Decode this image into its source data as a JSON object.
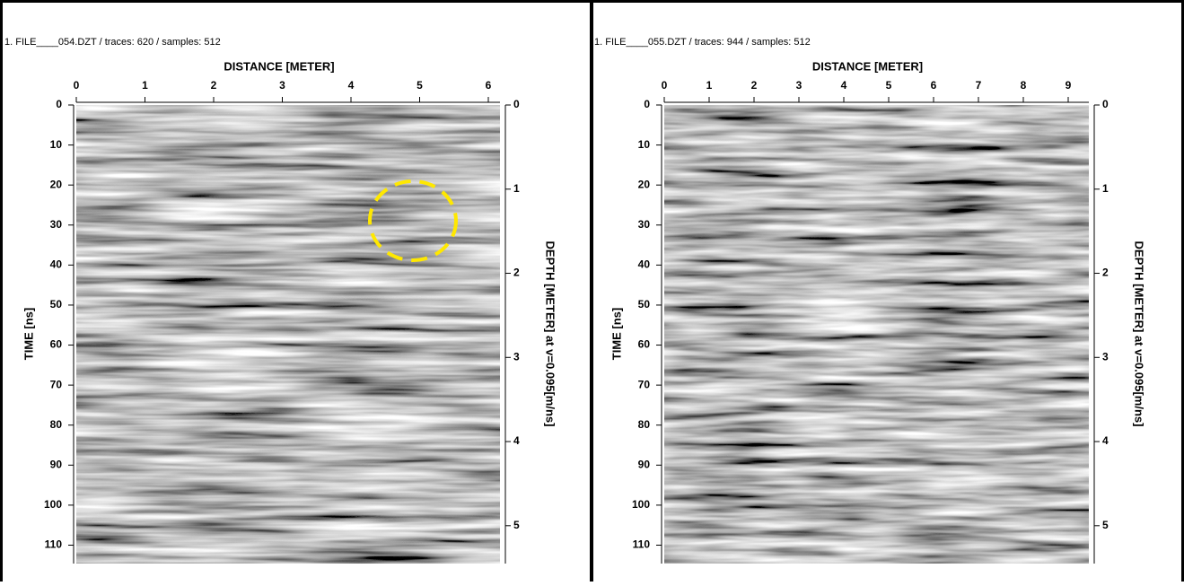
{
  "panels": [
    {
      "header": "1. FILE____054.DZT / traces: 620 / samples: 512",
      "x_label": "DISTANCE [METER]",
      "y_label": "TIME [ns]",
      "y2_label": "DEPTH [METER] at v=0.095[m/ns]",
      "xlim": [
        0,
        6.17
      ],
      "xticks": [
        0,
        1,
        2,
        3,
        4,
        5,
        6
      ],
      "ylim": [
        0,
        114.6
      ],
      "yticks": [
        0,
        10,
        20,
        30,
        40,
        50,
        60,
        70,
        80,
        90,
        100,
        110
      ],
      "y2lim": [
        0,
        5.45
      ],
      "y2ticks": [
        0,
        1,
        2,
        3,
        4,
        5
      ]
    },
    {
      "header": "1. FILE____055.DZT / traces: 944 / samples: 512",
      "x_label": "DISTANCE [METER]",
      "y_label": "TIME [ns]",
      "y2_label": "DEPTH [METER] at v=0.095[m/ns]",
      "xlim": [
        0,
        9.46
      ],
      "xticks": [
        0,
        1,
        2,
        3,
        4,
        5,
        6,
        7,
        8,
        9
      ],
      "ylim": [
        0,
        114.6
      ],
      "yticks": [
        0,
        10,
        20,
        30,
        40,
        50,
        60,
        70,
        80,
        90,
        100,
        110
      ],
      "y2lim": [
        0,
        5.45
      ],
      "y2ticks": [
        0,
        1,
        2,
        3,
        4,
        5
      ]
    }
  ]
}
